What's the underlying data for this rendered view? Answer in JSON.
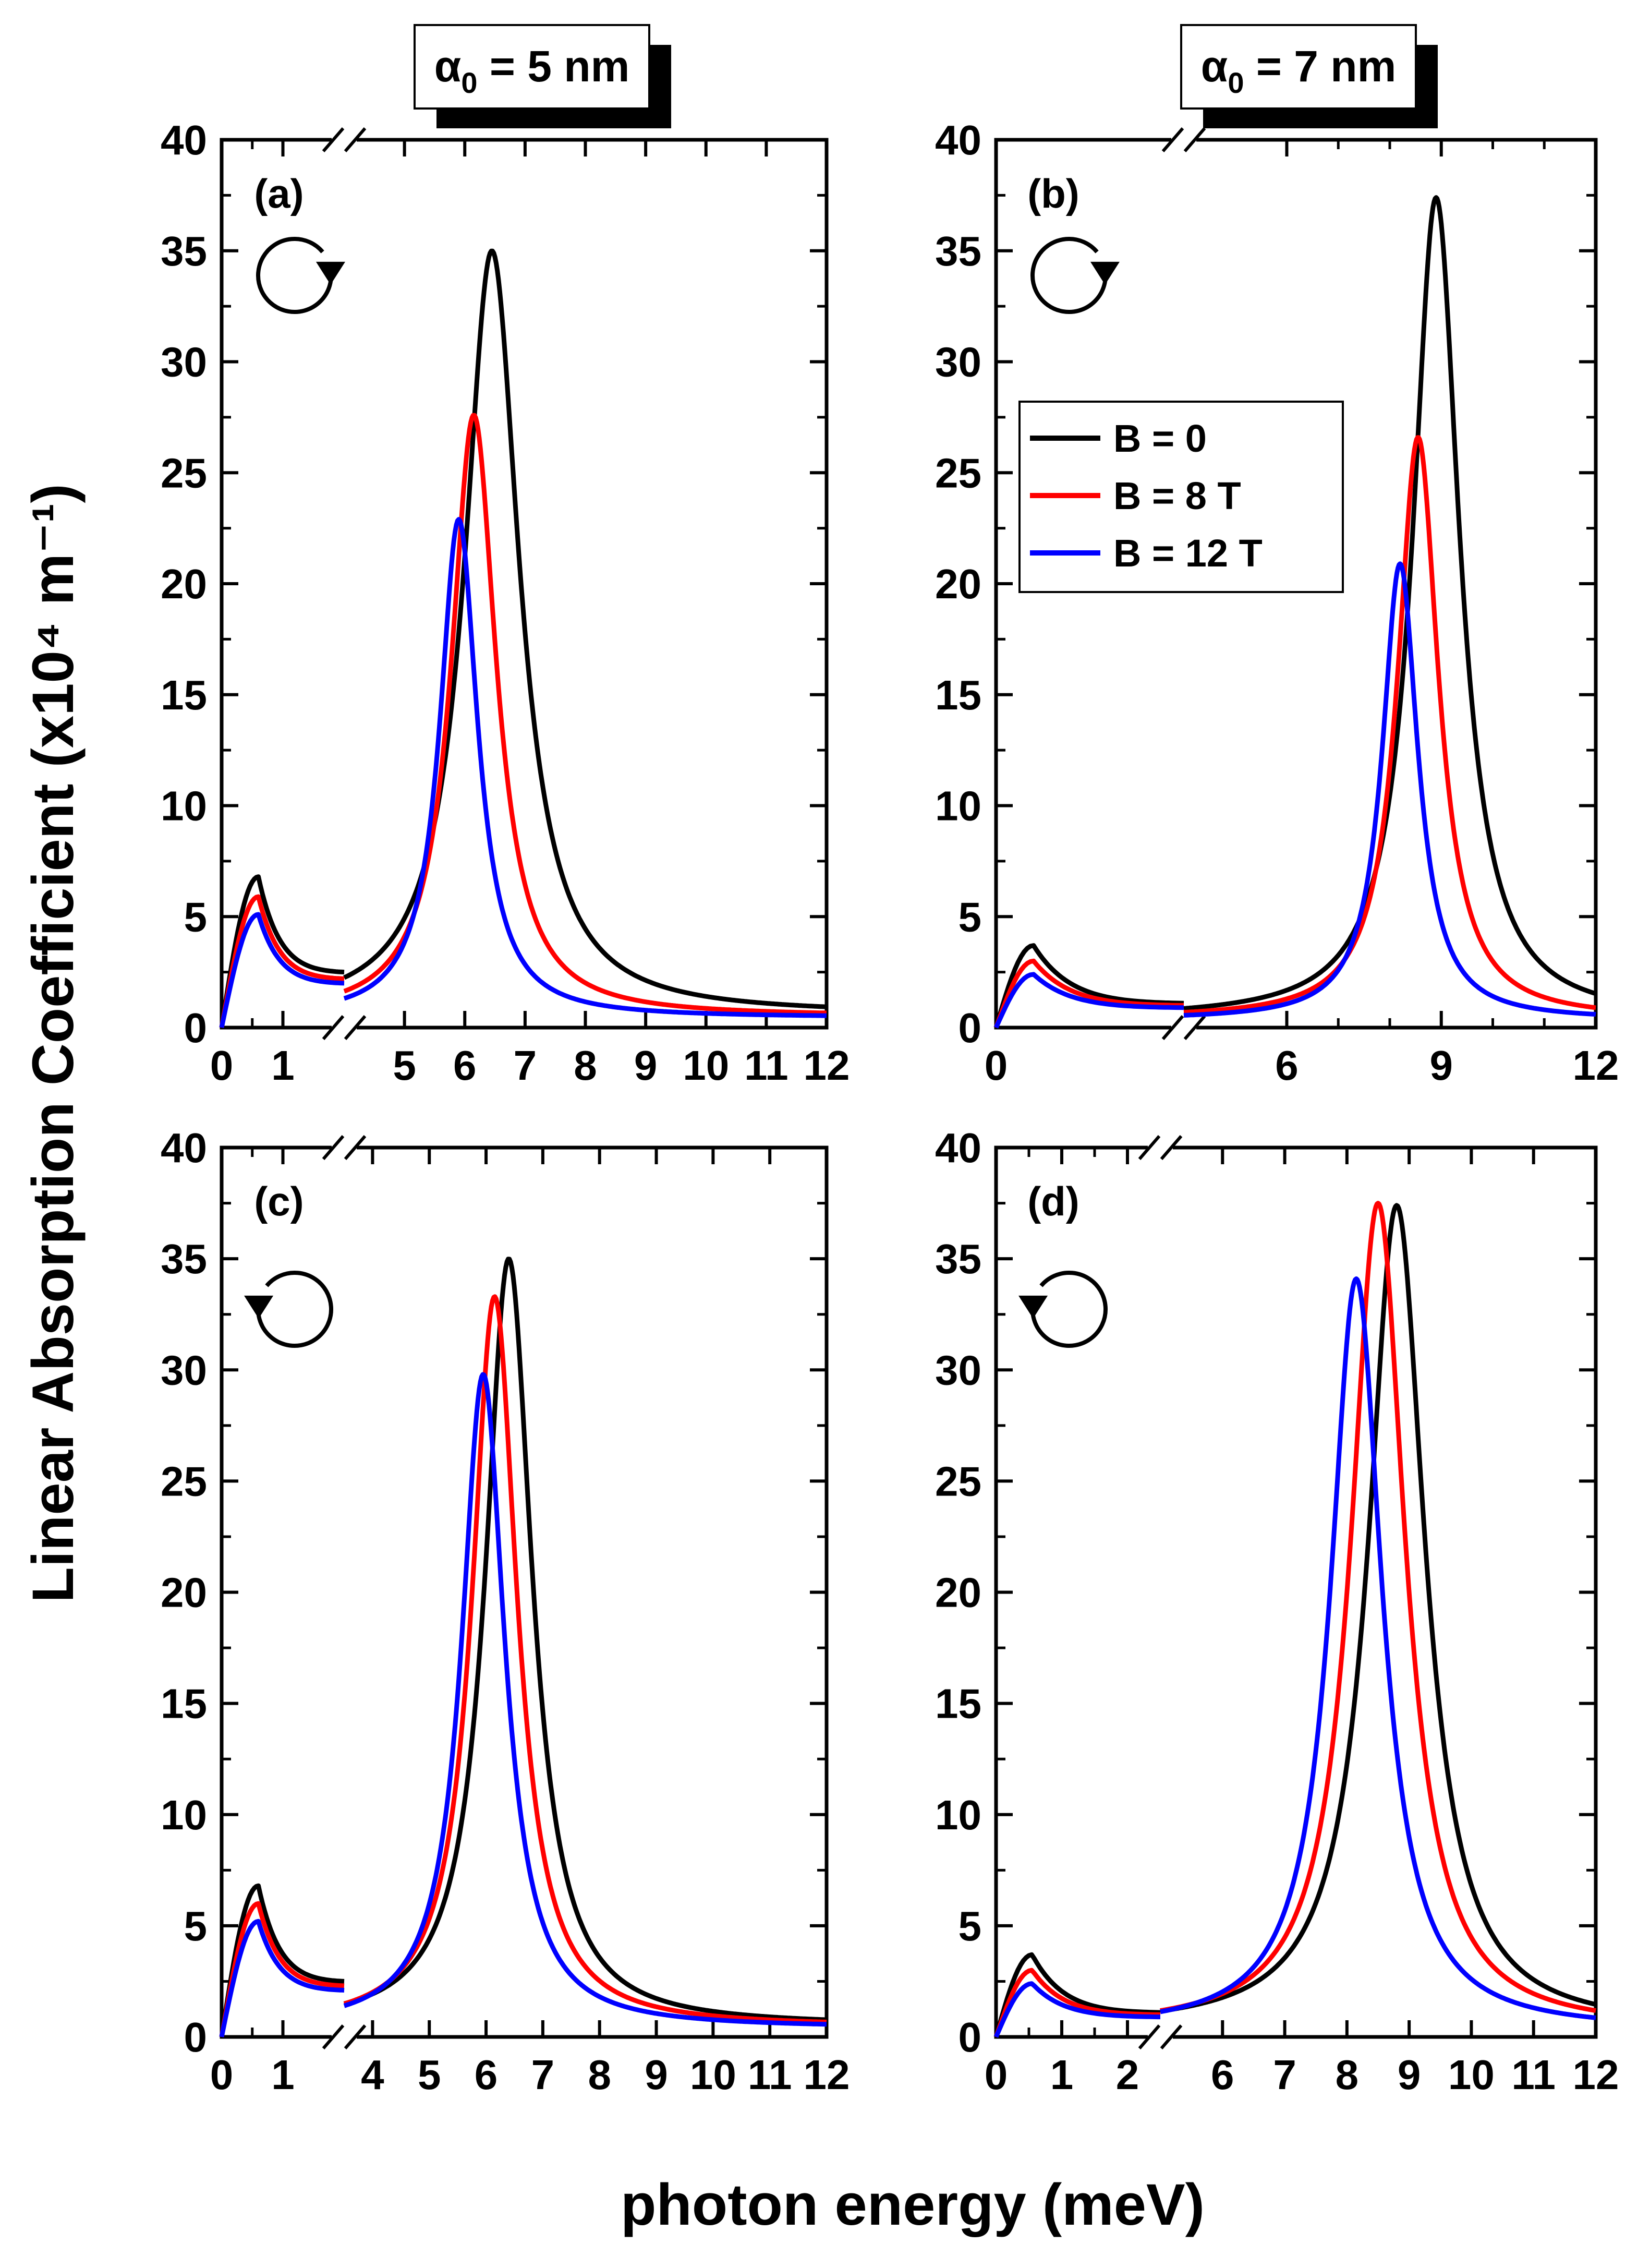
{
  "figure": {
    "ylabel": "Linear Absorption Coefficient (x10⁴ m⁻¹)",
    "xlabel": "photon energy (meV)"
  },
  "headers": [
    {
      "symbol": "α",
      "subscript": "0",
      "text": " = 5 nm"
    },
    {
      "symbol": "α",
      "subscript": "0",
      "text": " = 7 nm"
    }
  ],
  "legend": {
    "entries": [
      {
        "label": "B = 0",
        "color": "#000000"
      },
      {
        "label": "B = 8 T",
        "color": "#ff0000"
      },
      {
        "label": "B = 12 T",
        "color": "#0000ff"
      }
    ]
  },
  "chart_data": [
    {
      "type": "line",
      "panel": "(a)",
      "alpha0": "5 nm",
      "rotation": "clockwise",
      "ylim": [
        0,
        40
      ],
      "yticks": [
        0,
        5,
        10,
        15,
        20,
        25,
        30,
        35,
        40
      ],
      "xtick_labels": [
        "0",
        "1",
        "5",
        "6",
        "7",
        "8",
        "9",
        "10",
        "11",
        "12"
      ],
      "segment1": {
        "xlim": [
          0,
          2
        ],
        "ticks": [
          0,
          1
        ]
      },
      "segment2": {
        "xlim": [
          4,
          12
        ],
        "ticks": [
          5,
          6,
          7,
          8,
          9,
          10,
          11,
          12
        ]
      },
      "series": [
        {
          "name": "B = 0",
          "low_peak": {
            "x": 0.6,
            "y": 6.8
          },
          "low_end": 2.5,
          "peak": {
            "x": 6.45,
            "y": 35.0
          },
          "width": 0.55,
          "base": 0.6
        },
        {
          "name": "B = 8 T",
          "low_peak": {
            "x": 0.6,
            "y": 5.9
          },
          "low_end": 2.2,
          "peak": {
            "x": 6.15,
            "y": 27.6
          },
          "width": 0.45,
          "base": 0.5
        },
        {
          "name": "B = 12 T",
          "low_peak": {
            "x": 0.6,
            "y": 5.1
          },
          "low_end": 2.0,
          "peak": {
            "x": 5.9,
            "y": 22.9
          },
          "width": 0.38,
          "base": 0.45
        }
      ]
    },
    {
      "type": "line",
      "panel": "(b)",
      "alpha0": "7 nm",
      "rotation": "clockwise",
      "ylim": [
        0,
        40
      ],
      "yticks": [
        0,
        5,
        10,
        15,
        20,
        25,
        30,
        35,
        40
      ],
      "xtick_labels": [
        "0",
        "6",
        "9",
        "12"
      ],
      "segment1": {
        "xlim": [
          0,
          3
        ],
        "ticks": [
          0
        ]
      },
      "segment2": {
        "xlim": [
          4,
          12
        ],
        "ticks": [
          6,
          9,
          12
        ]
      },
      "series": [
        {
          "name": "B = 0",
          "low_peak": {
            "x": 0.6,
            "y": 3.7
          },
          "low_end": 1.1,
          "peak": {
            "x": 8.9,
            "y": 37.4
          },
          "width": 0.55,
          "base": 0.4
        },
        {
          "name": "B = 8 T",
          "low_peak": {
            "x": 0.6,
            "y": 3.0
          },
          "low_end": 1.0,
          "peak": {
            "x": 8.55,
            "y": 26.6
          },
          "width": 0.48,
          "base": 0.4
        },
        {
          "name": "B = 12 T",
          "low_peak": {
            "x": 0.6,
            "y": 2.4
          },
          "low_end": 0.9,
          "peak": {
            "x": 8.2,
            "y": 20.9
          },
          "width": 0.42,
          "base": 0.35
        }
      ]
    },
    {
      "type": "line",
      "panel": "(c)",
      "alpha0": "5 nm",
      "rotation": "counterclockwise",
      "ylim": [
        0,
        40
      ],
      "yticks": [
        0,
        5,
        10,
        15,
        20,
        25,
        30,
        35,
        40
      ],
      "xtick_labels": [
        "0",
        "1",
        "4",
        "5",
        "6",
        "7",
        "8",
        "9",
        "10",
        "11",
        "12"
      ],
      "segment1": {
        "xlim": [
          0,
          2
        ],
        "ticks": [
          0,
          1
        ]
      },
      "segment2": {
        "xlim": [
          3.5,
          12
        ],
        "ticks": [
          4,
          5,
          6,
          7,
          8,
          9,
          10,
          11,
          12
        ]
      },
      "series": [
        {
          "name": "B = 0",
          "low_peak": {
            "x": 0.6,
            "y": 6.8
          },
          "low_end": 2.5,
          "peak": {
            "x": 6.4,
            "y": 35.0
          },
          "width": 0.5,
          "base": 0.5
        },
        {
          "name": "B = 8 T",
          "low_peak": {
            "x": 0.6,
            "y": 6.0
          },
          "low_end": 2.3,
          "peak": {
            "x": 6.15,
            "y": 33.3
          },
          "width": 0.48,
          "base": 0.45
        },
        {
          "name": "B = 12 T",
          "low_peak": {
            "x": 0.6,
            "y": 5.2
          },
          "low_end": 2.1,
          "peak": {
            "x": 5.95,
            "y": 29.8
          },
          "width": 0.46,
          "base": 0.4
        }
      ]
    },
    {
      "type": "line",
      "panel": "(d)",
      "alpha0": "7 nm",
      "rotation": "counterclockwise",
      "ylim": [
        0,
        40
      ],
      "yticks": [
        0,
        5,
        10,
        15,
        20,
        25,
        30,
        35,
        40
      ],
      "xtick_labels": [
        "0",
        "1",
        "2",
        "6",
        "7",
        "8",
        "9",
        "10",
        "11",
        "12"
      ],
      "segment1": {
        "xlim": [
          0,
          2.5
        ],
        "ticks": [
          0,
          1,
          2
        ]
      },
      "segment2": {
        "xlim": [
          5,
          12
        ],
        "ticks": [
          6,
          7,
          8,
          9,
          10,
          11,
          12
        ]
      },
      "series": [
        {
          "name": "B = 0",
          "low_peak": {
            "x": 0.55,
            "y": 3.7
          },
          "low_end": 1.1,
          "peak": {
            "x": 8.8,
            "y": 37.4
          },
          "width": 0.55,
          "base": 0.4
        },
        {
          "name": "B = 8 T",
          "low_peak": {
            "x": 0.55,
            "y": 3.0
          },
          "low_end": 1.0,
          "peak": {
            "x": 8.5,
            "y": 37.5
          },
          "width": 0.53,
          "base": 0.35
        },
        {
          "name": "B = 12 T",
          "low_peak": {
            "x": 0.55,
            "y": 2.4
          },
          "low_end": 0.9,
          "peak": {
            "x": 8.15,
            "y": 34.1
          },
          "width": 0.5,
          "base": 0.3
        }
      ]
    }
  ]
}
